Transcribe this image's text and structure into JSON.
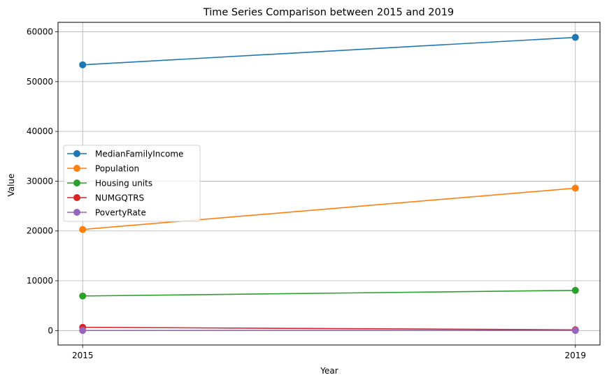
{
  "chart_data": {
    "type": "line",
    "title": "Time Series Comparison between 2015 and 2019",
    "xlabel": "Year",
    "ylabel": "Value",
    "x": [
      2015,
      2019
    ],
    "x_tick_labels": [
      "2015",
      "2019"
    ],
    "xlim": [
      2014.8,
      2019.2
    ],
    "ylim": [
      -2900,
      61900
    ],
    "y_ticks": [
      0,
      10000,
      20000,
      30000,
      40000,
      50000,
      60000
    ],
    "y_tick_labels": [
      "0",
      "10000",
      "20000",
      "30000",
      "40000",
      "50000",
      "60000"
    ],
    "grid": true,
    "legend_position": "center left",
    "markers": "circle",
    "series": [
      {
        "name": "MedianFamilyIncome",
        "color": "#1f77b4",
        "values": [
          53370,
          58880
        ]
      },
      {
        "name": "Population",
        "color": "#ff7f0e",
        "values": [
          20300,
          28600
        ]
      },
      {
        "name": "Housing units",
        "color": "#2ca02c",
        "values": [
          6940,
          8070
        ]
      },
      {
        "name": "NUMGQTRS",
        "color": "#d62728",
        "values": [
          650,
          150
        ]
      },
      {
        "name": "PovertyRate",
        "color": "#9467bd",
        "values": [
          15,
          15
        ]
      }
    ]
  }
}
